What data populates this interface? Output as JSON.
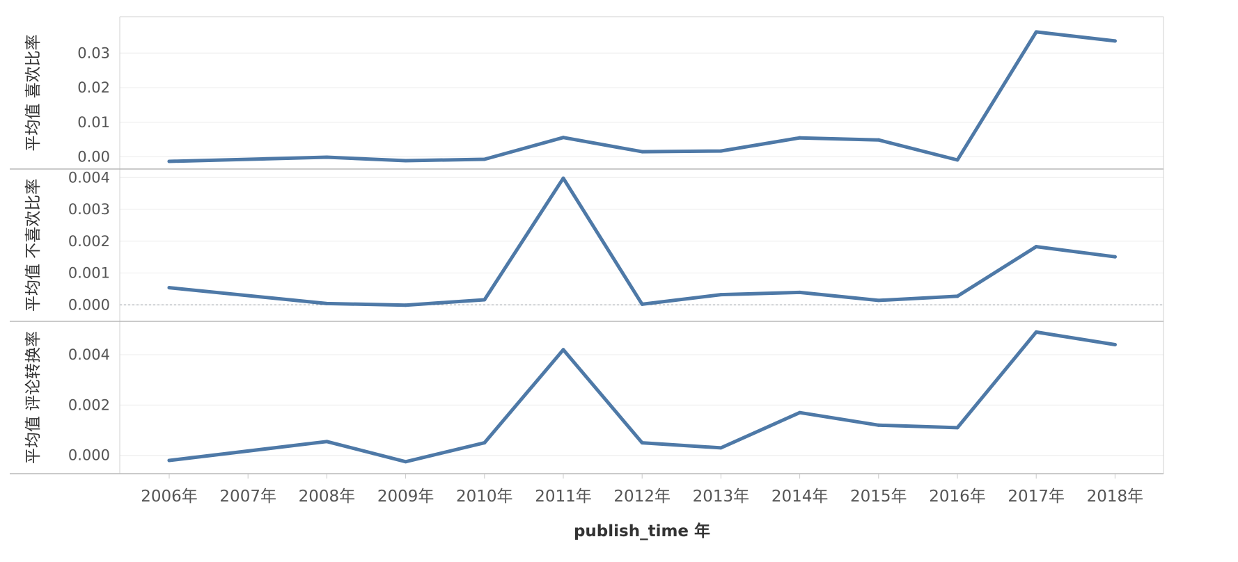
{
  "chart_data": {
    "type": "line",
    "x": [
      "2006年",
      "2007年",
      "2008年",
      "2009年",
      "2010年",
      "2011年",
      "2012年",
      "2013年",
      "2014年",
      "2015年",
      "2016年",
      "2017年",
      "2018年"
    ],
    "xlabel": "publish_time 年",
    "panels": [
      {
        "ylabel": "平均值 喜欢比率",
        "ylim": [
          -0.0015,
          0.0385
        ],
        "yticks": [
          0.0,
          0.01,
          0.02,
          0.03
        ],
        "ytick_labels": [
          "0.00",
          "0.01",
          "0.02",
          "0.03"
        ],
        "values": [
          -0.0013,
          null,
          -0.0001,
          -0.0011,
          -0.0007,
          0.0056,
          0.0015,
          0.0017,
          0.0055,
          0.0049,
          -0.0009,
          0.0361,
          0.0335
        ]
      },
      {
        "ylabel": "平均值 不喜欢比率",
        "ylim": [
          -0.0003,
          0.00405
        ],
        "yticks": [
          0.0,
          0.001,
          0.002,
          0.003,
          0.004
        ],
        "ytick_labels": [
          "0.000",
          "0.001",
          "0.002",
          "0.003",
          "0.004"
        ],
        "zero_line": true,
        "values": [
          0.00054,
          null,
          4e-05,
          -1e-05,
          0.00016,
          0.00398,
          2e-05,
          0.00032,
          0.00039,
          0.00014,
          0.00027,
          0.00183,
          0.00151
        ]
      },
      {
        "ylabel": "平均值 评论转换率",
        "ylim": [
          -0.00045,
          0.00505
        ],
        "yticks": [
          0.0,
          0.002,
          0.004
        ],
        "ytick_labels": [
          "0.000",
          "0.002",
          "0.004"
        ],
        "values": [
          -0.0002,
          null,
          0.00055,
          -0.00025,
          0.0005,
          0.0042,
          0.0005,
          0.0003,
          0.0017,
          0.0012,
          0.0011,
          0.0049,
          0.0044
        ]
      }
    ],
    "line_color": "#4e79a7",
    "grid": true
  }
}
